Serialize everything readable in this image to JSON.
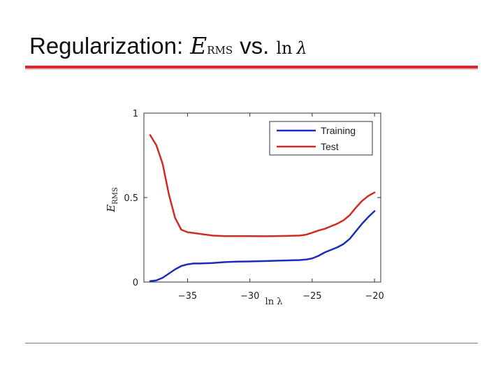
{
  "slide": {
    "title_text": "Regularization:",
    "title_symbol": "E",
    "title_subscript": "RMS",
    "title_vs": "vs.",
    "title_ln": "ln",
    "title_lambda": "λ"
  },
  "colors": {
    "accent_rule": "#d9262b",
    "training": "#1a2db8",
    "test": "#d42a22"
  },
  "chart_data": {
    "type": "line",
    "xlabel": "ln λ",
    "ylabel_symbol": "E",
    "ylabel_subscript": "RMS",
    "xlim": [
      -38.5,
      -19.5
    ],
    "ylim": [
      0,
      1
    ],
    "xticks": [
      -35,
      -30,
      -25,
      -20
    ],
    "xtick_labels": [
      "−35",
      "−30",
      "−25",
      "−20"
    ],
    "yticks": [
      0,
      0.5,
      1
    ],
    "ytick_labels": [
      "0",
      "0.5",
      "1"
    ],
    "grid": false,
    "legend_position": "top-right",
    "series": [
      {
        "name": "Training",
        "color": "#1a2db8",
        "x": [
          -38,
          -37.5,
          -37,
          -36.5,
          -36,
          -35.5,
          -35,
          -34.5,
          -34,
          -33,
          -32,
          -31,
          -30,
          -29,
          -28,
          -27,
          -26,
          -25.5,
          -25,
          -24.5,
          -24,
          -23.5,
          -23,
          -22.5,
          -22,
          -21.5,
          -21,
          -20.5,
          -20
        ],
        "y": [
          0.005,
          0.01,
          0.025,
          0.05,
          0.075,
          0.095,
          0.105,
          0.11,
          0.11,
          0.113,
          0.118,
          0.121,
          0.122,
          0.124,
          0.126,
          0.128,
          0.13,
          0.133,
          0.14,
          0.155,
          0.175,
          0.19,
          0.205,
          0.225,
          0.255,
          0.3,
          0.345,
          0.385,
          0.42
        ]
      },
      {
        "name": "Test",
        "color": "#d42a22",
        "x": [
          -38,
          -37.5,
          -37,
          -36.5,
          -36,
          -35.5,
          -35,
          -34.5,
          -34,
          -33,
          -32,
          -31,
          -30,
          -29,
          -28,
          -27,
          -26,
          -25.5,
          -25,
          -24.5,
          -24,
          -23.5,
          -23,
          -22.5,
          -22,
          -21.5,
          -21,
          -20.5,
          -20
        ],
        "y": [
          0.87,
          0.81,
          0.7,
          0.52,
          0.38,
          0.31,
          0.295,
          0.29,
          0.285,
          0.275,
          0.272,
          0.272,
          0.272,
          0.271,
          0.272,
          0.273,
          0.275,
          0.28,
          0.292,
          0.305,
          0.315,
          0.33,
          0.345,
          0.365,
          0.395,
          0.44,
          0.48,
          0.51,
          0.53
        ]
      }
    ]
  }
}
